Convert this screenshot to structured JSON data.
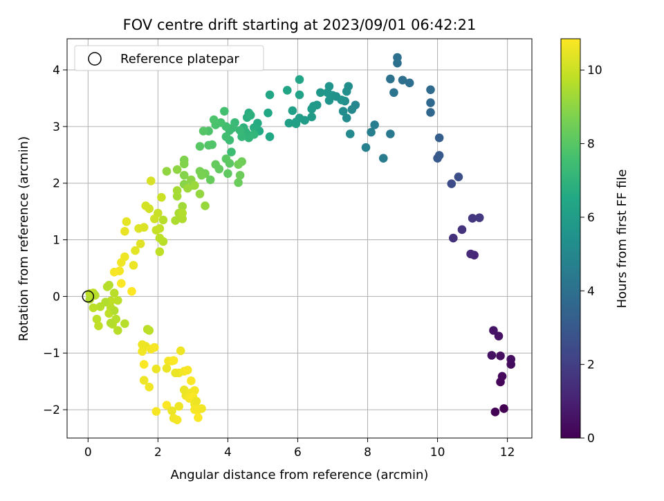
{
  "chart_data": {
    "type": "scatter",
    "title": "FOV centre drift starting at 2023/09/01 06:42:21",
    "xlabel": "Angular distance from reference (arcmin)",
    "ylabel": "Rotation from reference (arcmin)",
    "xlim": [
      -0.6,
      12.7
    ],
    "ylim": [
      -2.5,
      4.55
    ],
    "xticks": [
      0,
      2,
      4,
      6,
      8,
      10,
      12
    ],
    "yticks": [
      -2,
      -1,
      0,
      1,
      2,
      3,
      4
    ],
    "grid": true,
    "legend": {
      "placement": "top-left",
      "entries": [
        "Reference platepar"
      ]
    },
    "reference_point": {
      "x": 0,
      "y": 0,
      "label": "Reference platepar"
    },
    "colorbar": {
      "label": "Hours from first FF file",
      "colormap": "viridis",
      "range": [
        0,
        10.85
      ],
      "ticks": [
        0,
        2,
        4,
        6,
        8,
        10
      ]
    },
    "points": [
      [
        11.9,
        -1.98,
        0.0
      ],
      [
        11.65,
        -2.04,
        0.08
      ],
      [
        11.8,
        -1.51,
        0.15
      ],
      [
        11.85,
        -1.41,
        0.22
      ],
      [
        12.1,
        -1.2,
        0.3
      ],
      [
        12.1,
        -1.11,
        0.36
      ],
      [
        11.8,
        -1.05,
        0.42
      ],
      [
        11.55,
        -1.04,
        0.48
      ],
      [
        11.75,
        -0.7,
        0.55
      ],
      [
        11.6,
        -0.6,
        0.6
      ],
      [
        11.05,
        0.73,
        1.2
      ],
      [
        10.95,
        0.75,
        1.28
      ],
      [
        10.45,
        1.03,
        1.5
      ],
      [
        10.7,
        1.18,
        1.6
      ],
      [
        11.0,
        1.38,
        1.7
      ],
      [
        11.2,
        1.39,
        1.8
      ],
      [
        10.4,
        1.99,
        2.5
      ],
      [
        10.6,
        2.11,
        2.6
      ],
      [
        10.0,
        2.44,
        3.0
      ],
      [
        10.05,
        2.49,
        3.05
      ],
      [
        10.05,
        2.8,
        3.2
      ],
      [
        9.8,
        3.25,
        3.6
      ],
      [
        9.8,
        3.42,
        3.7
      ],
      [
        9.8,
        3.65,
        3.75
      ],
      [
        9.2,
        3.77,
        3.9
      ],
      [
        9.0,
        3.82,
        3.95
      ],
      [
        8.85,
        4.12,
        4.0
      ],
      [
        8.85,
        4.22,
        4.05
      ],
      [
        8.65,
        3.84,
        4.1
      ],
      [
        8.75,
        3.6,
        4.15
      ],
      [
        8.65,
        2.87,
        4.4
      ],
      [
        8.45,
        2.44,
        4.5
      ],
      [
        8.2,
        3.03,
        4.6
      ],
      [
        8.1,
        2.9,
        4.65
      ],
      [
        7.95,
        2.63,
        4.7
      ],
      [
        7.65,
        3.38,
        5.0
      ],
      [
        7.55,
        3.3,
        5.05
      ],
      [
        7.5,
        2.87,
        5.1
      ],
      [
        7.4,
        3.15,
        5.15
      ],
      [
        7.35,
        3.45,
        5.2
      ],
      [
        7.3,
        3.27,
        5.25
      ],
      [
        7.45,
        3.71,
        5.3
      ],
      [
        7.4,
        3.62,
        5.35
      ],
      [
        7.1,
        3.53,
        5.4
      ],
      [
        7.25,
        3.47,
        5.45
      ],
      [
        7.0,
        3.55,
        5.5
      ],
      [
        6.9,
        3.71,
        5.55
      ],
      [
        6.9,
        3.46,
        5.6
      ],
      [
        6.85,
        3.6,
        5.65
      ],
      [
        6.65,
        3.6,
        5.7
      ],
      [
        6.55,
        3.38,
        5.75
      ],
      [
        6.45,
        3.36,
        5.8
      ],
      [
        6.4,
        3.31,
        5.85
      ],
      [
        6.4,
        3.17,
        5.9
      ],
      [
        6.2,
        3.11,
        5.95
      ],
      [
        6.05,
        3.15,
        6.0
      ],
      [
        5.95,
        3.08,
        6.05
      ],
      [
        5.85,
        3.28,
        6.1
      ],
      [
        5.75,
        3.06,
        6.15
      ],
      [
        5.95,
        3.05,
        6.2
      ],
      [
        6.05,
        3.56,
        6.25
      ],
      [
        6.05,
        3.83,
        6.3
      ],
      [
        5.7,
        3.64,
        6.35
      ],
      [
        5.2,
        3.56,
        6.4
      ],
      [
        5.15,
        3.24,
        6.45
      ],
      [
        5.2,
        2.82,
        6.5
      ],
      [
        4.9,
        2.92,
        6.55
      ],
      [
        4.85,
        3.06,
        6.6
      ],
      [
        4.8,
        2.97,
        6.65
      ],
      [
        4.75,
        2.98,
        6.7
      ],
      [
        4.6,
        3.24,
        6.75
      ],
      [
        4.55,
        3.16,
        6.8
      ],
      [
        4.65,
        3.2,
        6.85
      ],
      [
        4.45,
        2.98,
        6.9
      ],
      [
        4.5,
        2.91,
        6.95
      ],
      [
        4.55,
        2.87,
        7.0
      ],
      [
        4.6,
        2.8,
        7.05
      ],
      [
        4.75,
        2.86,
        7.1
      ],
      [
        4.4,
        2.82,
        7.15
      ],
      [
        4.35,
        2.93,
        7.2
      ],
      [
        4.2,
        3.07,
        7.25
      ],
      [
        4.15,
        2.98,
        7.3
      ],
      [
        4.05,
        2.93,
        7.35
      ],
      [
        4.05,
        2.76,
        7.4
      ],
      [
        4.1,
        2.55,
        7.45
      ],
      [
        3.95,
        2.82,
        7.5
      ],
      [
        3.95,
        3.0,
        7.55
      ],
      [
        3.9,
        3.27,
        7.6
      ],
      [
        3.8,
        3.07,
        7.65
      ],
      [
        3.65,
        3.03,
        7.7
      ],
      [
        3.6,
        3.12,
        7.75
      ],
      [
        3.45,
        2.92,
        7.8
      ],
      [
        3.55,
        2.68,
        7.85
      ],
      [
        3.45,
        2.67,
        7.9
      ],
      [
        3.3,
        2.92,
        7.95
      ],
      [
        3.2,
        2.65,
        8.0
      ],
      [
        3.95,
        2.43,
        8.05
      ],
      [
        4.05,
        2.35,
        8.1
      ],
      [
        4.0,
        2.17,
        8.15
      ],
      [
        3.75,
        2.25,
        8.2
      ],
      [
        3.65,
        2.33,
        8.25
      ],
      [
        3.5,
        2.06,
        8.3
      ],
      [
        4.3,
        2.01,
        8.35
      ],
      [
        4.35,
        2.14,
        8.4
      ],
      [
        4.4,
        2.38,
        8.45
      ],
      [
        4.3,
        2.33,
        8.5
      ],
      [
        3.35,
        2.17,
        8.55
      ],
      [
        3.2,
        2.21,
        8.6
      ],
      [
        3.25,
        2.14,
        8.65
      ],
      [
        3.0,
        1.96,
        8.7
      ],
      [
        2.75,
        2.41,
        8.75
      ],
      [
        2.75,
        2.34,
        8.8
      ],
      [
        2.75,
        2.14,
        8.85
      ],
      [
        2.75,
        1.98,
        8.9
      ],
      [
        2.95,
        2.06,
        8.95
      ],
      [
        2.55,
        2.24,
        9.0
      ],
      [
        2.25,
        2.21,
        9.05
      ],
      [
        3.2,
        1.81,
        9.1
      ],
      [
        3.35,
        1.6,
        9.15
      ],
      [
        3.05,
        1.96,
        9.2
      ],
      [
        2.85,
        1.91,
        9.25
      ],
      [
        2.7,
        1.59,
        9.3
      ],
      [
        2.55,
        1.77,
        9.35
      ],
      [
        2.55,
        1.87,
        9.4
      ],
      [
        2.6,
        1.47,
        9.45
      ],
      [
        2.5,
        1.34,
        9.5
      ],
      [
        2.7,
        1.37,
        9.55
      ],
      [
        2.7,
        1.47,
        9.6
      ],
      [
        2.15,
        1.35,
        9.65
      ],
      [
        2.15,
        0.97,
        9.7
      ],
      [
        2.05,
        1.03,
        9.75
      ],
      [
        2.05,
        0.79,
        9.8
      ],
      [
        2.05,
        1.2,
        9.85
      ],
      [
        1.95,
        1.17,
        9.9
      ],
      [
        2.0,
        1.47,
        9.95
      ],
      [
        2.1,
        1.75,
        10.0
      ],
      [
        1.9,
        1.37,
        10.05
      ],
      [
        1.75,
        1.55,
        10.1
      ],
      [
        1.65,
        1.6,
        10.15
      ],
      [
        1.8,
        2.04,
        10.2
      ],
      [
        1.6,
        1.22,
        10.25
      ],
      [
        1.45,
        1.2,
        10.3
      ],
      [
        1.5,
        0.93,
        10.35
      ],
      [
        1.35,
        0.81,
        10.4
      ],
      [
        1.1,
        1.32,
        10.45
      ],
      [
        1.05,
        1.15,
        10.5
      ],
      [
        1.3,
        0.55,
        10.55
      ],
      [
        1.05,
        0.7,
        10.6
      ],
      [
        0.95,
        0.6,
        10.65
      ],
      [
        0.9,
        0.45,
        10.7
      ],
      [
        0.75,
        0.43,
        10.75
      ],
      [
        0.95,
        0.23,
        10.8
      ],
      [
        1.25,
        0.09,
        10.85
      ]
    ],
    "points_late": [
      [
        0.6,
        0.2
      ],
      [
        0.55,
        0.17
      ],
      [
        0.75,
        0.06
      ],
      [
        0.85,
        -0.07
      ],
      [
        0.65,
        -0.08
      ],
      [
        0.5,
        -0.1
      ],
      [
        0.35,
        -0.18
      ],
      [
        0.65,
        -0.2
      ],
      [
        0.15,
        -0.2
      ],
      [
        0.6,
        -0.3
      ],
      [
        0.75,
        -0.25
      ],
      [
        0.8,
        -0.4
      ],
      [
        0.7,
        -0.49
      ],
      [
        0.25,
        -0.4
      ],
      [
        0.3,
        -0.52
      ],
      [
        0.65,
        -0.47
      ],
      [
        1.05,
        -0.48
      ],
      [
        0.85,
        -0.6
      ],
      [
        0.05,
        0.05
      ],
      [
        0.15,
        0.06
      ],
      [
        0.05,
        -0.05
      ],
      [
        0.2,
        0.02
      ],
      [
        1.7,
        -0.58
      ],
      [
        1.75,
        -0.6
      ],
      [
        1.65,
        -0.88
      ],
      [
        1.55,
        -0.85
      ],
      [
        1.55,
        -0.97
      ],
      [
        1.8,
        -0.93
      ],
      [
        1.9,
        -0.9
      ],
      [
        1.6,
        -1.2
      ],
      [
        1.95,
        -1.28
      ],
      [
        1.6,
        -1.48
      ],
      [
        1.75,
        -1.6
      ],
      [
        2.3,
        -1.14
      ],
      [
        2.4,
        -1.14
      ],
      [
        2.45,
        -1.13
      ],
      [
        2.25,
        -1.27
      ],
      [
        2.65,
        -0.96
      ],
      [
        2.6,
        -1.35
      ],
      [
        2.75,
        -1.32
      ],
      [
        2.85,
        -1.3
      ],
      [
        2.95,
        -1.49
      ],
      [
        2.75,
        -1.65
      ],
      [
        2.8,
        -1.75
      ],
      [
        2.95,
        -1.7
      ],
      [
        3.05,
        -1.66
      ],
      [
        2.9,
        -1.8
      ],
      [
        3.0,
        -1.77
      ],
      [
        3.1,
        -1.85
      ],
      [
        3.05,
        -1.9
      ],
      [
        3.25,
        -1.98
      ],
      [
        3.15,
        -2.0
      ],
      [
        3.05,
        -2.0
      ],
      [
        2.25,
        -1.92
      ],
      [
        2.4,
        -2.02
      ],
      [
        2.6,
        -1.94
      ],
      [
        2.45,
        -2.15
      ],
      [
        2.55,
        -2.18
      ],
      [
        1.95,
        -2.03
      ],
      [
        3.15,
        -2.14
      ],
      [
        2.5,
        -1.35
      ]
    ]
  }
}
